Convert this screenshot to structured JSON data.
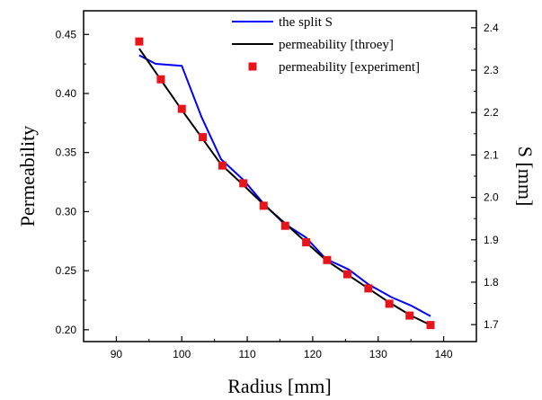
{
  "chart_data": {
    "type": "line",
    "title": "",
    "xlabel": "Radius [mm]",
    "ylabel": "Permeability",
    "y2label": "S [mm]",
    "xlim": [
      85,
      145
    ],
    "ylim": [
      0.19,
      0.47
    ],
    "y2lim": [
      1.66,
      2.44
    ],
    "xticks": [
      90,
      100,
      110,
      120,
      130,
      140
    ],
    "yticks": [
      0.2,
      0.25,
      0.3,
      0.35,
      0.4,
      0.45
    ],
    "y2ticks": [
      1.7,
      1.8,
      1.9,
      2.0,
      2.1,
      2.2,
      2.3,
      2.4
    ],
    "grid": false,
    "legend_position": "top-right",
    "series": [
      {
        "name": "the split S",
        "kind": "line",
        "axis": "right",
        "color": "#0000ff",
        "x": [
          93.5,
          96.0,
          100.0,
          103.0,
          106.0,
          109.5,
          112.5,
          115.5,
          119.0,
          122.0,
          125.5,
          128.5,
          132.0,
          135.0,
          138.0
        ],
        "y": [
          2.335,
          2.315,
          2.31,
          2.19,
          2.09,
          2.04,
          1.985,
          1.94,
          1.905,
          1.855,
          1.83,
          1.795,
          1.765,
          1.745,
          1.72
        ]
      },
      {
        "name": "permeability [throey]",
        "kind": "line",
        "axis": "left",
        "color": "#000000",
        "x": [
          93.5,
          97.0,
          100.0,
          103.0,
          106.0,
          109.5,
          112.5,
          116.0,
          119.0,
          122.0,
          125.5,
          128.5,
          132.0,
          135.0,
          138.0
        ],
        "y": [
          0.438,
          0.41,
          0.386,
          0.363,
          0.34,
          0.322,
          0.306,
          0.289,
          0.274,
          0.259,
          0.246,
          0.235,
          0.222,
          0.212,
          0.204
        ]
      },
      {
        "name": "permeability [experiment]",
        "kind": "scatter",
        "axis": "left",
        "color": "#e8141b",
        "x": [
          93.5,
          96.8,
          100.0,
          103.2,
          106.2,
          109.4,
          112.5,
          115.8,
          119.0,
          122.2,
          125.3,
          128.5,
          131.7,
          134.8,
          138.0
        ],
        "y": [
          0.444,
          0.412,
          0.387,
          0.363,
          0.339,
          0.324,
          0.305,
          0.288,
          0.274,
          0.259,
          0.247,
          0.235,
          0.222,
          0.212,
          0.204
        ]
      }
    ]
  }
}
